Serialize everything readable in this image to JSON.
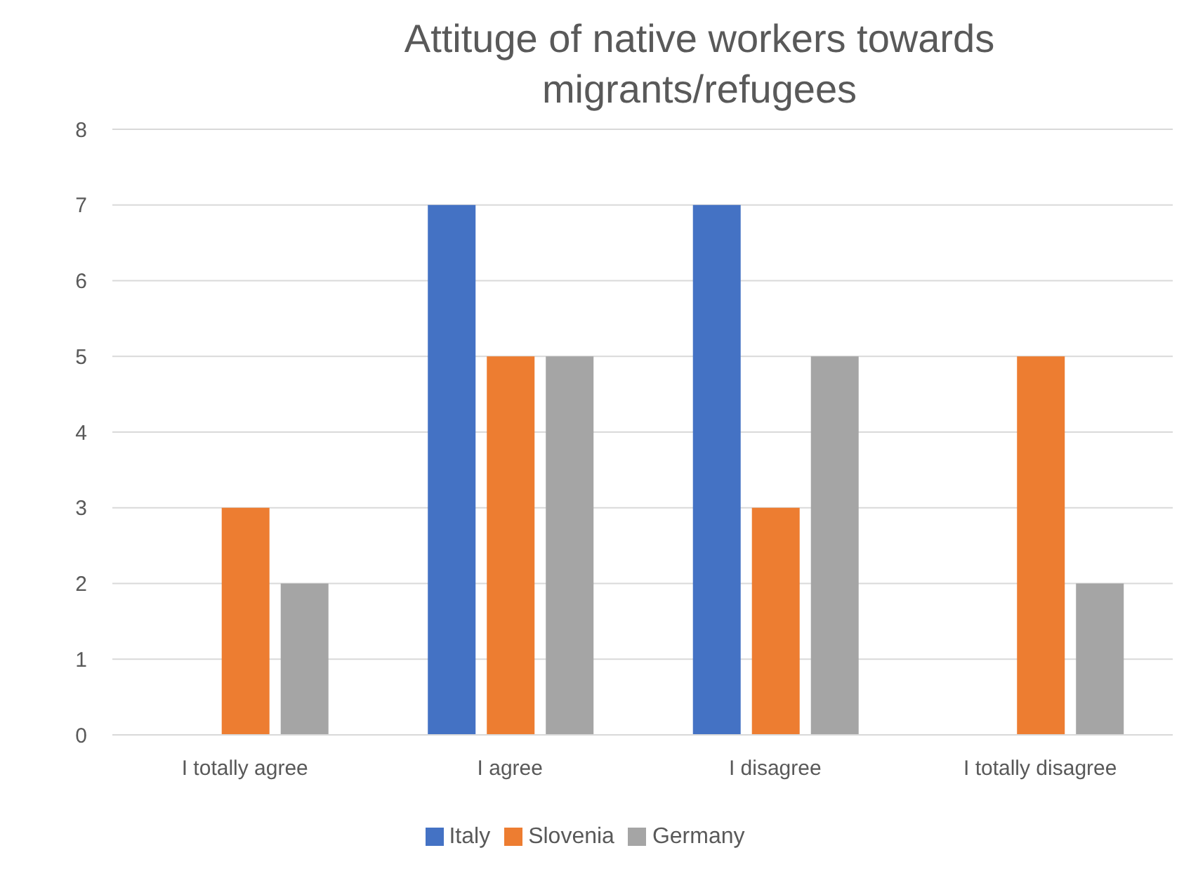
{
  "chart_data": {
    "type": "bar",
    "title": "Attituge of native workers towards migrants/refugees",
    "categories": [
      "I totally agree",
      "I agree",
      "I disagree",
      "I totally disagree"
    ],
    "series": [
      {
        "name": "Italy",
        "color": "#4472c4",
        "values": [
          0,
          7,
          7,
          0
        ]
      },
      {
        "name": "Slovenia",
        "color": "#ed7d31",
        "values": [
          3,
          5,
          3,
          5
        ]
      },
      {
        "name": "Germany",
        "color": "#a5a5a5",
        "values": [
          2,
          5,
          5,
          2
        ]
      }
    ],
    "ylim": [
      0,
      8
    ],
    "yticks": [
      0,
      1,
      2,
      3,
      4,
      5,
      6,
      7,
      8
    ],
    "grid": "y",
    "legend": "bottom"
  }
}
